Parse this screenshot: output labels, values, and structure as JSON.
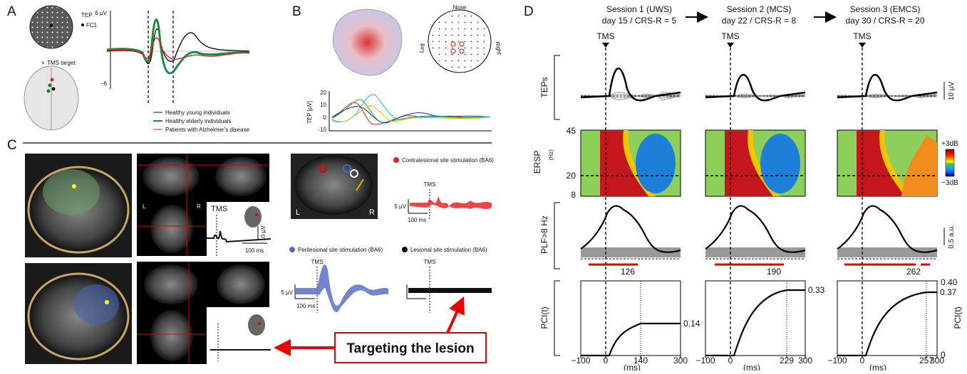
{
  "panel_a": {
    "letter": "A",
    "map_label": "TEP",
    "electrode": "FC1",
    "target_label": "TMS target",
    "y_top": "6 µV",
    "y_bottom": "−6",
    "legend": [
      "Healthy young individuals",
      "Healthy elderly individuals",
      "Patients with Alzheimer's disease"
    ]
  },
  "panel_b": {
    "letter": "B",
    "nose": "Nose",
    "left": "Left",
    "right": "Right",
    "y_label": "TEP [µV]",
    "yticks": [
      "20",
      "10",
      "0",
      "-10"
    ]
  },
  "panel_c": {
    "letter": "C",
    "mri_left": "L",
    "mri_right": "R",
    "tms": "TMS",
    "scale_v": "10 µV",
    "scale_t": "100 ms",
    "coronal_left": "L",
    "coronal_right": "R",
    "contralesional": {
      "title": "Contralesional site stimulation (BA6)",
      "tms": "TMS",
      "scale_v": "5 µV",
      "scale_t": "100 ms"
    },
    "perilesional": {
      "title": "Perilesional site stimulation (BA6)",
      "tms": "TMS",
      "scale_v": "5 µV",
      "scale_t": "100 ms"
    },
    "lesional": {
      "title": "Lesional site stimulation (BA6)",
      "tms": "TMS"
    },
    "callout": "Targeting the lesion"
  },
  "panel_d": {
    "letter": "D",
    "sessions": [
      {
        "title": "Session 1 (UWS)",
        "subtitle": "day 15 / CRS-R = 5",
        "tms": "TMS",
        "plf_time": "126",
        "pci_value": "0.14",
        "xticks": [
          "−100",
          "0",
          "140",
          "300"
        ],
        "x_label": "(ms)"
      },
      {
        "title": "Session 2 (MCS)",
        "subtitle": "day 22 / CRS-R = 8",
        "tms": "TMS",
        "plf_time": "190",
        "pci_value": "0.33",
        "xticks": [
          "−100",
          "0",
          "229",
          "300"
        ],
        "x_label": "(ms)"
      },
      {
        "title": "Session 3 (EMCS)",
        "subtitle": "day 30 / CRS-R = 20",
        "tms": "TMS",
        "plf_time": "262",
        "pci_value": "0.37",
        "xticks": [
          "−100",
          "0",
          "257",
          "300"
        ],
        "x_label": "(ms)"
      }
    ],
    "rows": {
      "teps": "TEPs",
      "ersp": "ERSP",
      "ersp_unit": "(Hz)",
      "plf": "PLF>8 Hz",
      "pci": "PCI(t)"
    },
    "ersp_ticks": [
      "45",
      "20",
      "8"
    ],
    "teps_scale": "10 µV",
    "ersp_high": "+3dB",
    "ersp_low": "−3dB",
    "plf_scale": "0.5 a.u.",
    "pci_top": "0.40",
    "pci_zero": "0",
    "pci_axis": "PCI(t)"
  }
}
